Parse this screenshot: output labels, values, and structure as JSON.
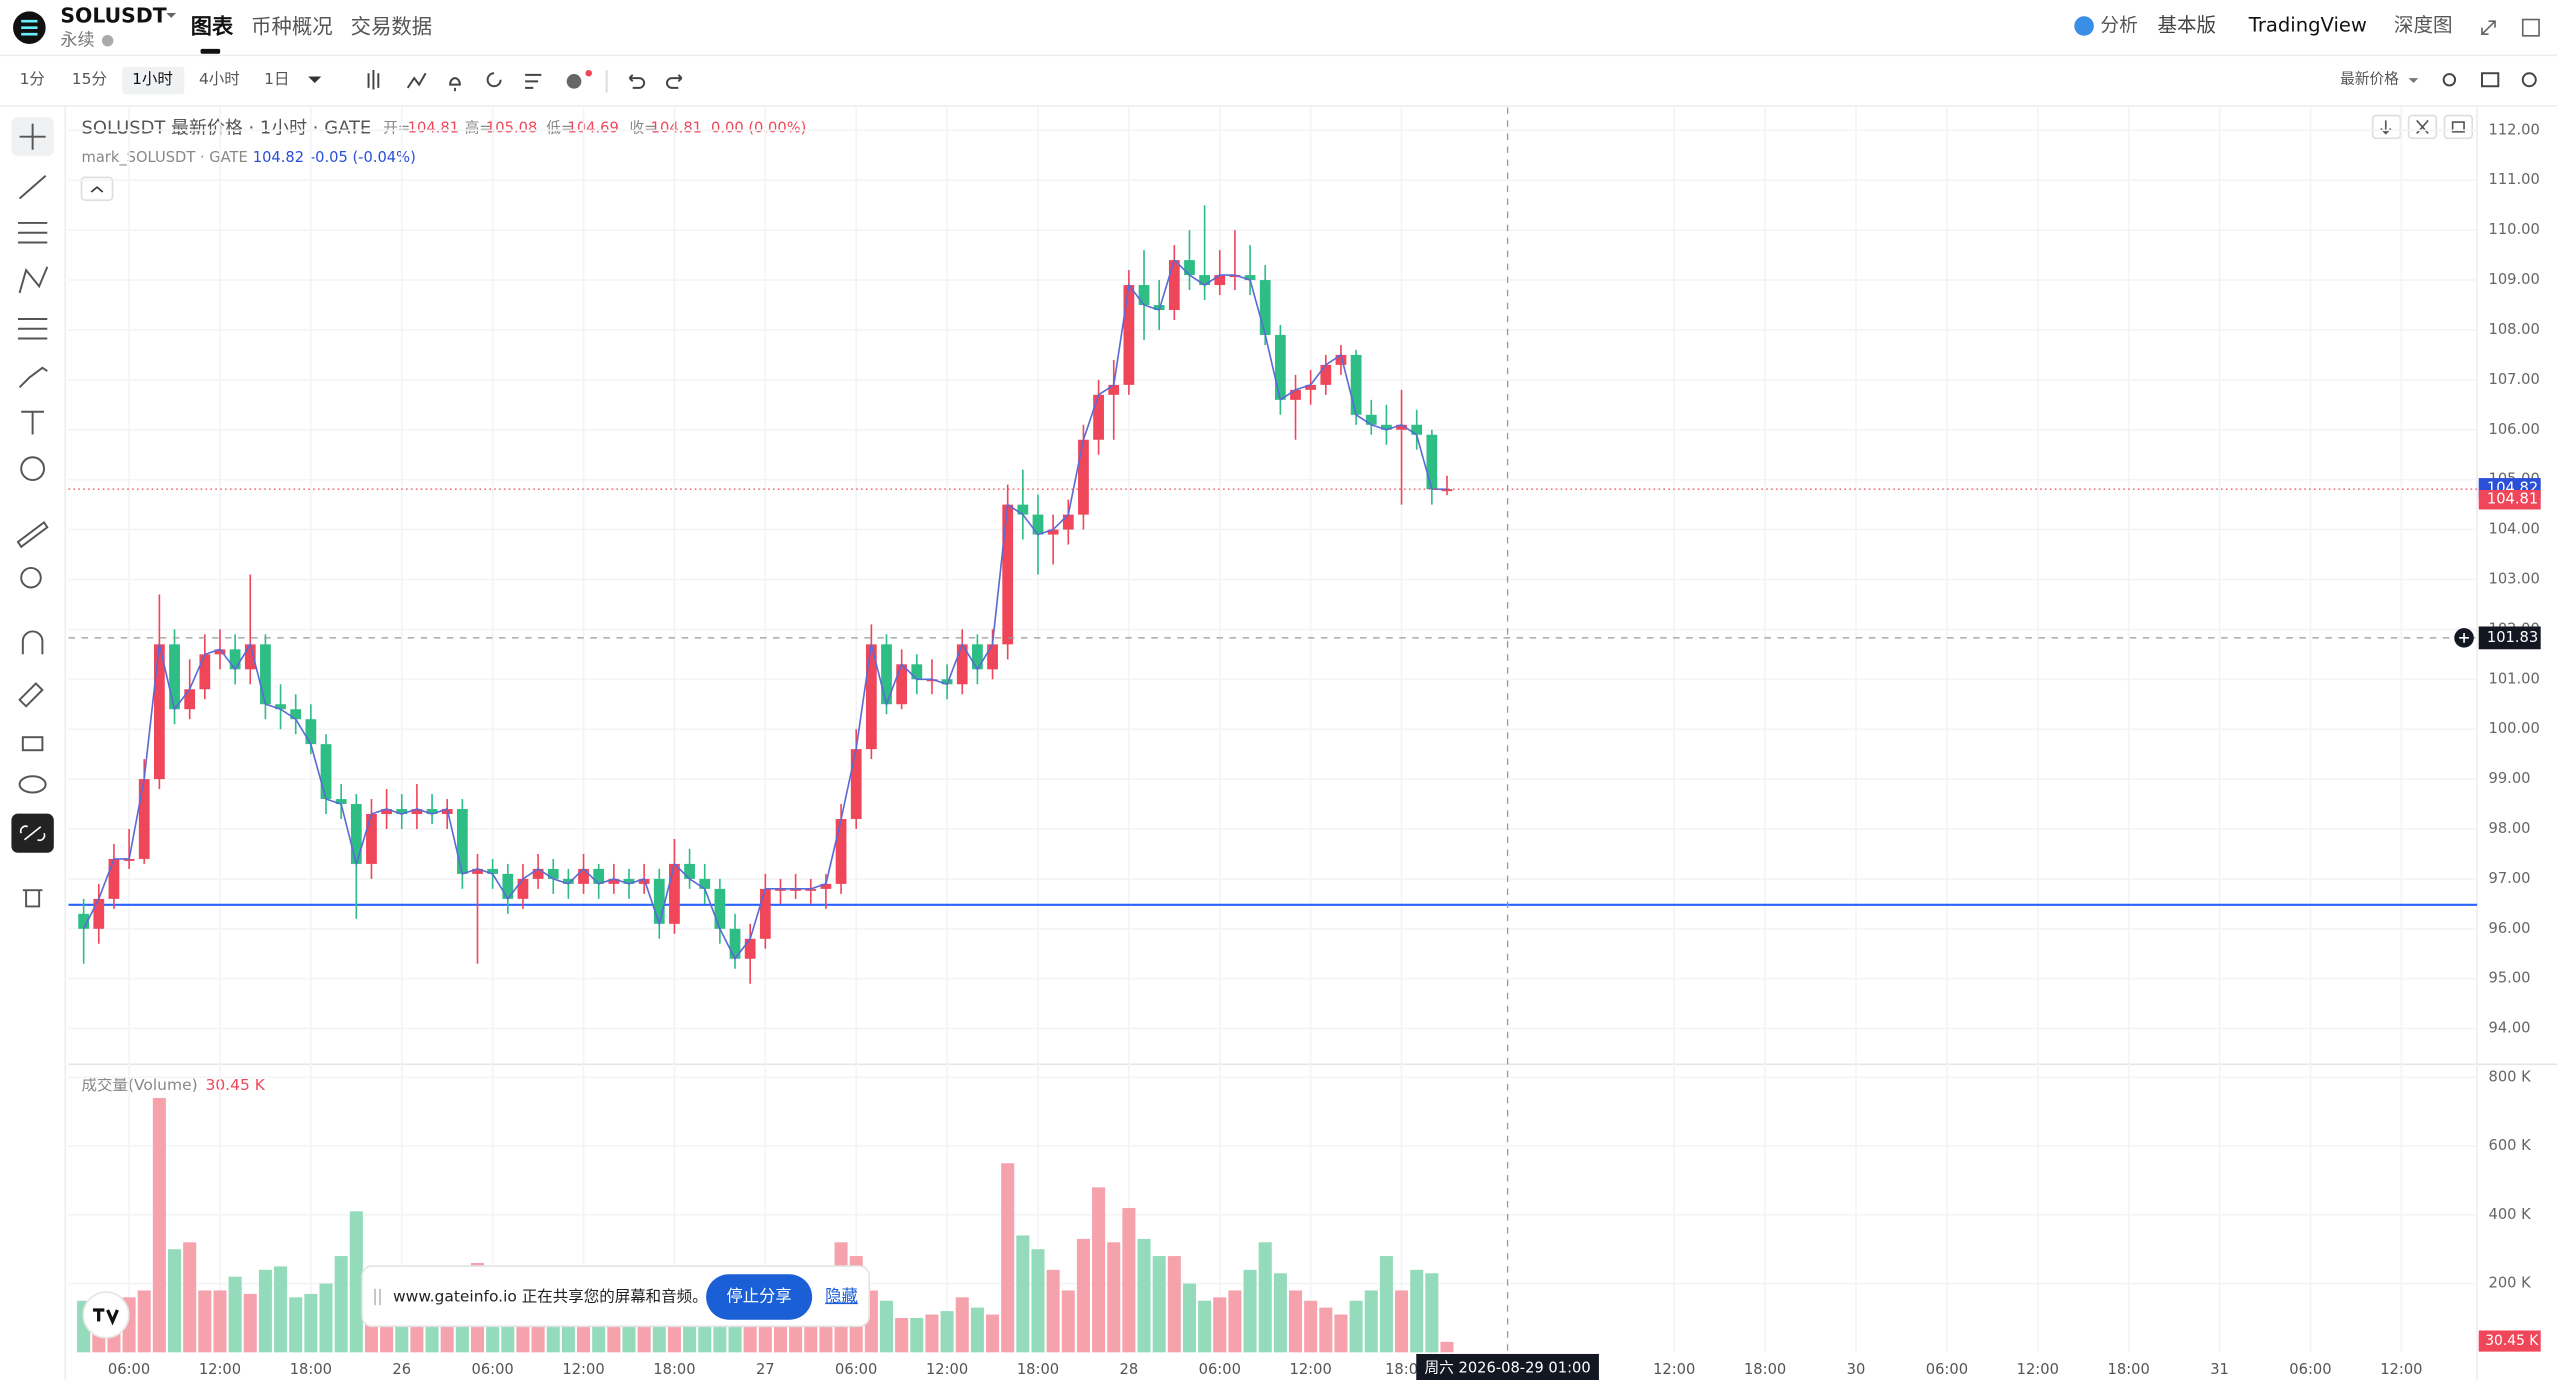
{
  "header": {
    "symbol": "SOLUSDT",
    "contract": "永续",
    "tabs": [
      "图表",
      "币种概况",
      "交易数据"
    ],
    "right_links": [
      "分析",
      "基本版",
      "TradingView",
      "深度图"
    ]
  },
  "toolbar": {
    "intervals": [
      "1分",
      "15分",
      "1小时",
      "4小时",
      "1日"
    ],
    "active_interval": "1小时",
    "price_type": "最新价格"
  },
  "chart_data": {
    "type": "candlestick",
    "title": "SOLUSDT 最新价格 · 1小时 · GATE",
    "ohlc_labels": [
      "开=",
      "高=",
      "低=",
      "收="
    ],
    "change_label": "0.00 (0.00%)",
    "mark": {
      "name": "mark_SOLUSDT · GATE",
      "value": 104.82,
      "change": "-0.05 (-0.04%)",
      "color": "#5b6bd5"
    },
    "up_color": "#f0465a",
    "down_color": "#2ebd85",
    "volume_up_color": "#f5a2ad",
    "volume_down_color": "#93dbba",
    "hline_color": "#2962ff",
    "grid": true,
    "open": [
      96.3,
      96.0,
      96.6,
      97.4,
      97.4,
      99.0,
      101.7,
      100.4,
      100.8,
      101.5,
      101.6,
      101.2,
      101.7,
      100.5,
      100.4,
      100.2,
      99.7,
      98.6,
      98.5,
      97.3,
      98.3,
      98.4,
      98.3,
      98.4,
      98.3,
      98.4,
      97.1,
      97.2,
      97.1,
      96.6,
      97.0,
      97.2,
      97.0,
      96.9,
      97.2,
      96.9,
      97.0,
      96.9,
      97.0,
      96.1,
      97.3,
      97.0,
      96.8,
      96.0,
      95.4,
      95.8,
      96.8,
      96.8,
      96.8,
      96.8,
      96.9,
      98.2,
      99.6,
      101.7,
      100.5,
      101.3,
      101.0,
      101.0,
      100.9,
      101.7,
      101.2,
      101.7,
      104.5,
      104.3,
      103.9,
      104.0,
      104.3,
      105.8,
      106.7,
      106.9,
      108.9,
      108.5,
      108.4,
      109.4,
      109.1,
      108.9,
      109.1,
      109.1,
      109.0,
      107.9,
      106.6,
      106.8,
      106.9,
      107.3,
      107.5,
      106.3,
      106.1,
      106.0,
      106.1,
      105.9,
      104.81
    ],
    "high": [
      96.6,
      96.9,
      97.7,
      98.0,
      99.4,
      102.7,
      102.0,
      101.4,
      101.9,
      102.0,
      101.9,
      103.1,
      101.9,
      100.9,
      100.7,
      100.5,
      99.9,
      98.9,
      98.7,
      98.6,
      98.8,
      98.7,
      98.9,
      98.7,
      98.6,
      98.6,
      97.5,
      97.4,
      97.3,
      97.3,
      97.5,
      97.4,
      97.2,
      97.5,
      97.3,
      97.3,
      97.2,
      97.3,
      97.2,
      97.8,
      97.6,
      97.3,
      97.0,
      96.3,
      96.1,
      97.1,
      97.0,
      97.1,
      97.0,
      97.1,
      98.5,
      100.0,
      102.1,
      101.9,
      101.6,
      101.5,
      101.4,
      101.3,
      102.0,
      101.9,
      102.0,
      104.9,
      105.2,
      104.7,
      104.3,
      104.6,
      106.1,
      107.0,
      107.4,
      109.2,
      109.6,
      109.0,
      109.7,
      110.0,
      110.5,
      109.6,
      110.0,
      109.7,
      109.3,
      108.1,
      107.1,
      107.2,
      107.5,
      107.7,
      107.6,
      106.6,
      106.5,
      106.8,
      106.4,
      106.0,
      105.08
    ],
    "low": [
      95.3,
      95.7,
      96.4,
      97.2,
      97.3,
      98.8,
      100.1,
      100.2,
      100.6,
      101.2,
      100.9,
      100.9,
      100.2,
      100.0,
      99.9,
      99.5,
      98.3,
      98.2,
      96.2,
      97.0,
      98.0,
      98.0,
      98.0,
      98.1,
      98.0,
      96.8,
      95.3,
      96.8,
      96.3,
      96.4,
      96.8,
      96.7,
      96.6,
      96.7,
      96.6,
      96.7,
      96.6,
      96.7,
      95.8,
      95.9,
      96.8,
      96.5,
      95.7,
      95.2,
      94.9,
      95.6,
      96.5,
      96.6,
      96.5,
      96.4,
      96.7,
      98.0,
      99.4,
      100.3,
      100.4,
      100.7,
      100.7,
      100.6,
      100.7,
      100.9,
      101.0,
      101.4,
      103.8,
      103.1,
      103.3,
      103.7,
      104.0,
      105.5,
      105.8,
      106.7,
      107.8,
      108.0,
      108.2,
      108.8,
      108.6,
      108.7,
      108.8,
      108.7,
      107.7,
      106.3,
      105.8,
      106.5,
      106.7,
      107.1,
      106.1,
      105.9,
      105.7,
      104.5,
      105.6,
      104.5,
      104.69
    ],
    "close": [
      96.0,
      96.6,
      97.4,
      97.4,
      99.0,
      101.7,
      100.4,
      100.8,
      101.5,
      101.6,
      101.2,
      101.7,
      100.5,
      100.4,
      100.2,
      99.7,
      98.6,
      98.5,
      97.3,
      98.3,
      98.4,
      98.3,
      98.4,
      98.3,
      98.4,
      97.1,
      97.2,
      97.1,
      96.6,
      97.0,
      97.2,
      97.0,
      96.9,
      97.2,
      96.9,
      97.0,
      96.9,
      97.0,
      96.1,
      97.3,
      97.0,
      96.8,
      96.0,
      95.4,
      95.8,
      96.8,
      96.8,
      96.8,
      96.8,
      96.9,
      98.2,
      99.6,
      101.7,
      100.5,
      101.3,
      101.0,
      101.0,
      100.9,
      101.7,
      101.2,
      101.7,
      104.5,
      104.3,
      103.9,
      104.0,
      104.3,
      105.8,
      106.7,
      106.9,
      108.9,
      108.5,
      108.4,
      109.4,
      109.1,
      108.9,
      109.1,
      109.1,
      109.0,
      107.9,
      106.6,
      106.8,
      106.9,
      107.3,
      107.5,
      106.3,
      106.1,
      106.0,
      106.1,
      105.9,
      104.81,
      104.81
    ],
    "volume": {
      "title": "成交量(Volume)",
      "values": [
        150000,
        100000,
        120000,
        160000,
        180000,
        740000,
        300000,
        320000,
        180000,
        180000,
        220000,
        170000,
        240000,
        250000,
        160000,
        170000,
        200000,
        280000,
        410000,
        170000,
        150000,
        160000,
        140000,
        180000,
        150000,
        200000,
        260000,
        210000,
        170000,
        130000,
        150000,
        120000,
        140000,
        110000,
        130000,
        120000,
        100000,
        140000,
        180000,
        130000,
        150000,
        110000,
        170000,
        200000,
        160000,
        140000,
        100000,
        120000,
        150000,
        180000,
        320000,
        280000,
        180000,
        150000,
        100000,
        100000,
        110000,
        120000,
        160000,
        130000,
        110000,
        550000,
        340000,
        300000,
        240000,
        180000,
        330000,
        480000,
        320000,
        420000,
        330000,
        280000,
        280000,
        200000,
        150000,
        160000,
        180000,
        240000,
        320000,
        230000,
        180000,
        150000,
        130000,
        110000,
        150000,
        180000,
        280000,
        180000,
        240000,
        230000,
        30450
      ],
      "value_labels": [
        null,
        null,
        null,
        null,
        null,
        null,
        null,
        null,
        null,
        null,
        null,
        null,
        null,
        null,
        null,
        null,
        null,
        null,
        null,
        null,
        null,
        null,
        null,
        null,
        null,
        null,
        null,
        null,
        null,
        null,
        null,
        null,
        null,
        null,
        null,
        null,
        null,
        null,
        null,
        null,
        null,
        null,
        null,
        null,
        null,
        null,
        null,
        null,
        null,
        null,
        null,
        null,
        null,
        null,
        null,
        null,
        null,
        null,
        null,
        null,
        null,
        null,
        null,
        null,
        null,
        null,
        null,
        null,
        null,
        null,
        null,
        null,
        null,
        null,
        null,
        null,
        null,
        null,
        null,
        null,
        null,
        null,
        null,
        null,
        null,
        null,
        null,
        null,
        null,
        null,
        "30.45 K"
      ]
    },
    "ylim": [
      93.35,
      112.46
    ],
    "yticks": [
      {
        "value": 94,
        "label": "94.00"
      },
      {
        "value": 95,
        "label": "95.00"
      },
      {
        "value": 96,
        "label": "96.00"
      },
      {
        "value": 97,
        "label": "97.00"
      },
      {
        "value": 98,
        "label": "98.00"
      },
      {
        "value": 99,
        "label": "99.00"
      },
      {
        "value": 100,
        "label": "100.00"
      },
      {
        "value": 101,
        "label": "101.00"
      },
      {
        "value": 102,
        "label": "102.00"
      },
      {
        "value": 103,
        "label": "103.00"
      },
      {
        "value": 104,
        "label": "104.00"
      },
      {
        "value": 105,
        "label": "105.00"
      },
      {
        "value": 106,
        "label": "106.00"
      },
      {
        "value": 107,
        "label": "107.00"
      },
      {
        "value": 108,
        "label": "108.00"
      },
      {
        "value": 109,
        "label": "109.00"
      },
      {
        "value": 110,
        "label": "110.00"
      },
      {
        "value": 111,
        "label": "111.00"
      },
      {
        "value": 112,
        "label": "112.00"
      }
    ],
    "y2lim": [
      0,
      800000
    ],
    "y2ticks": [
      {
        "value": 200000,
        "label": "200 K"
      },
      {
        "value": 400000,
        "label": "400 K"
      },
      {
        "value": 600000,
        "label": "600 K"
      },
      {
        "value": 800000,
        "label": "800 K"
      }
    ],
    "xlim": [
      -1,
      158
    ],
    "xticks": [
      {
        "value": 3,
        "label": "06:00"
      },
      {
        "value": 9,
        "label": "12:00"
      },
      {
        "value": 15,
        "label": "18:00"
      },
      {
        "value": 21,
        "label": "26"
      },
      {
        "value": 27,
        "label": "06:00"
      },
      {
        "value": 33,
        "label": "12:00"
      },
      {
        "value": 39,
        "label": "18:00"
      },
      {
        "value": 45,
        "label": "27"
      },
      {
        "value": 51,
        "label": "06:00"
      },
      {
        "value": 57,
        "label": "12:00"
      },
      {
        "value": 63,
        "label": "18:00"
      },
      {
        "value": 69,
        "label": "28"
      },
      {
        "value": 75,
        "label": "06:00"
      },
      {
        "value": 81,
        "label": "12:00"
      },
      {
        "value": 87,
        "label": "18:0"
      },
      {
        "value": 105,
        "label": "12:00"
      },
      {
        "value": 111,
        "label": "18:00"
      },
      {
        "value": 117,
        "label": "30"
      },
      {
        "value": 123,
        "label": "06:00"
      },
      {
        "value": 129,
        "label": "12:00"
      },
      {
        "value": 135,
        "label": "18:00"
      },
      {
        "value": 141,
        "label": "31"
      },
      {
        "value": 147,
        "label": "06:00"
      },
      {
        "value": 153,
        "label": "12:00"
      }
    ],
    "hline": 96.48,
    "crosshair": {
      "x": 94,
      "price": 101.83,
      "time_label": "周六 2026-08-29  01:00"
    }
  },
  "share_banner": {
    "text": "www.gateinfo.io 正在共享您的屏幕和音频。",
    "stop": "停止分享",
    "hide": "隐藏"
  }
}
